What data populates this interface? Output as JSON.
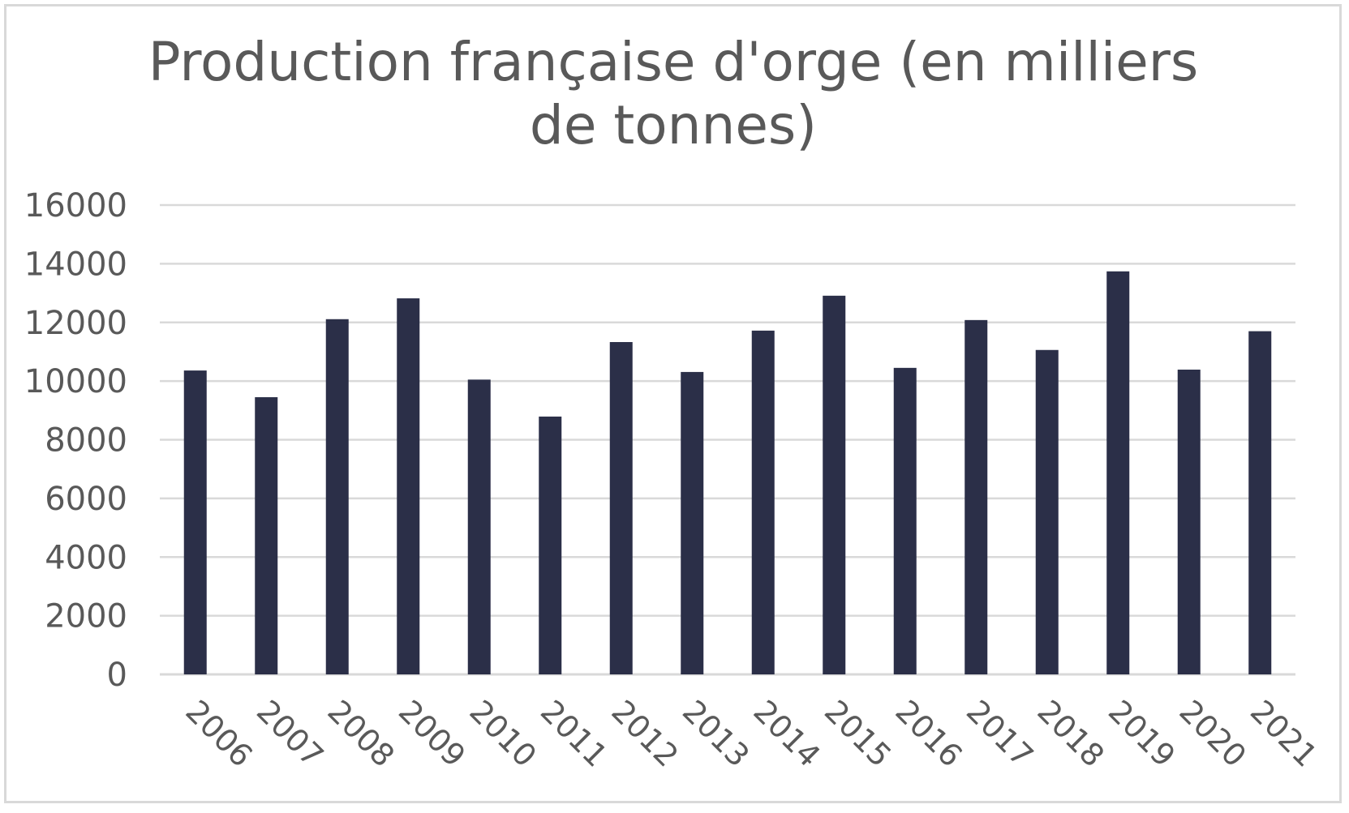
{
  "chart_data": {
    "type": "bar",
    "title": "Production française d'orge (en milliers de tonnes)",
    "xlabel": "",
    "ylabel": "",
    "categories": [
      "2006",
      "2007",
      "2008",
      "2009",
      "2010",
      "2011",
      "2012",
      "2013",
      "2014",
      "2015",
      "2016",
      "2017",
      "2018",
      "2019",
      "2020",
      "2021"
    ],
    "values": [
      10360,
      9450,
      12110,
      12820,
      10050,
      8790,
      11330,
      10310,
      11720,
      12910,
      10450,
      12080,
      11060,
      13740,
      10390,
      11700
    ],
    "ylim": [
      0,
      16000
    ],
    "yticks": [
      "0",
      "2000",
      "4000",
      "6000",
      "8000",
      "10000",
      "12000",
      "14000",
      "16000"
    ],
    "grid": true,
    "legend": "none",
    "bar_color": "#2b2f48",
    "grid_color": "#d9d9d9",
    "text_color": "#595959"
  }
}
